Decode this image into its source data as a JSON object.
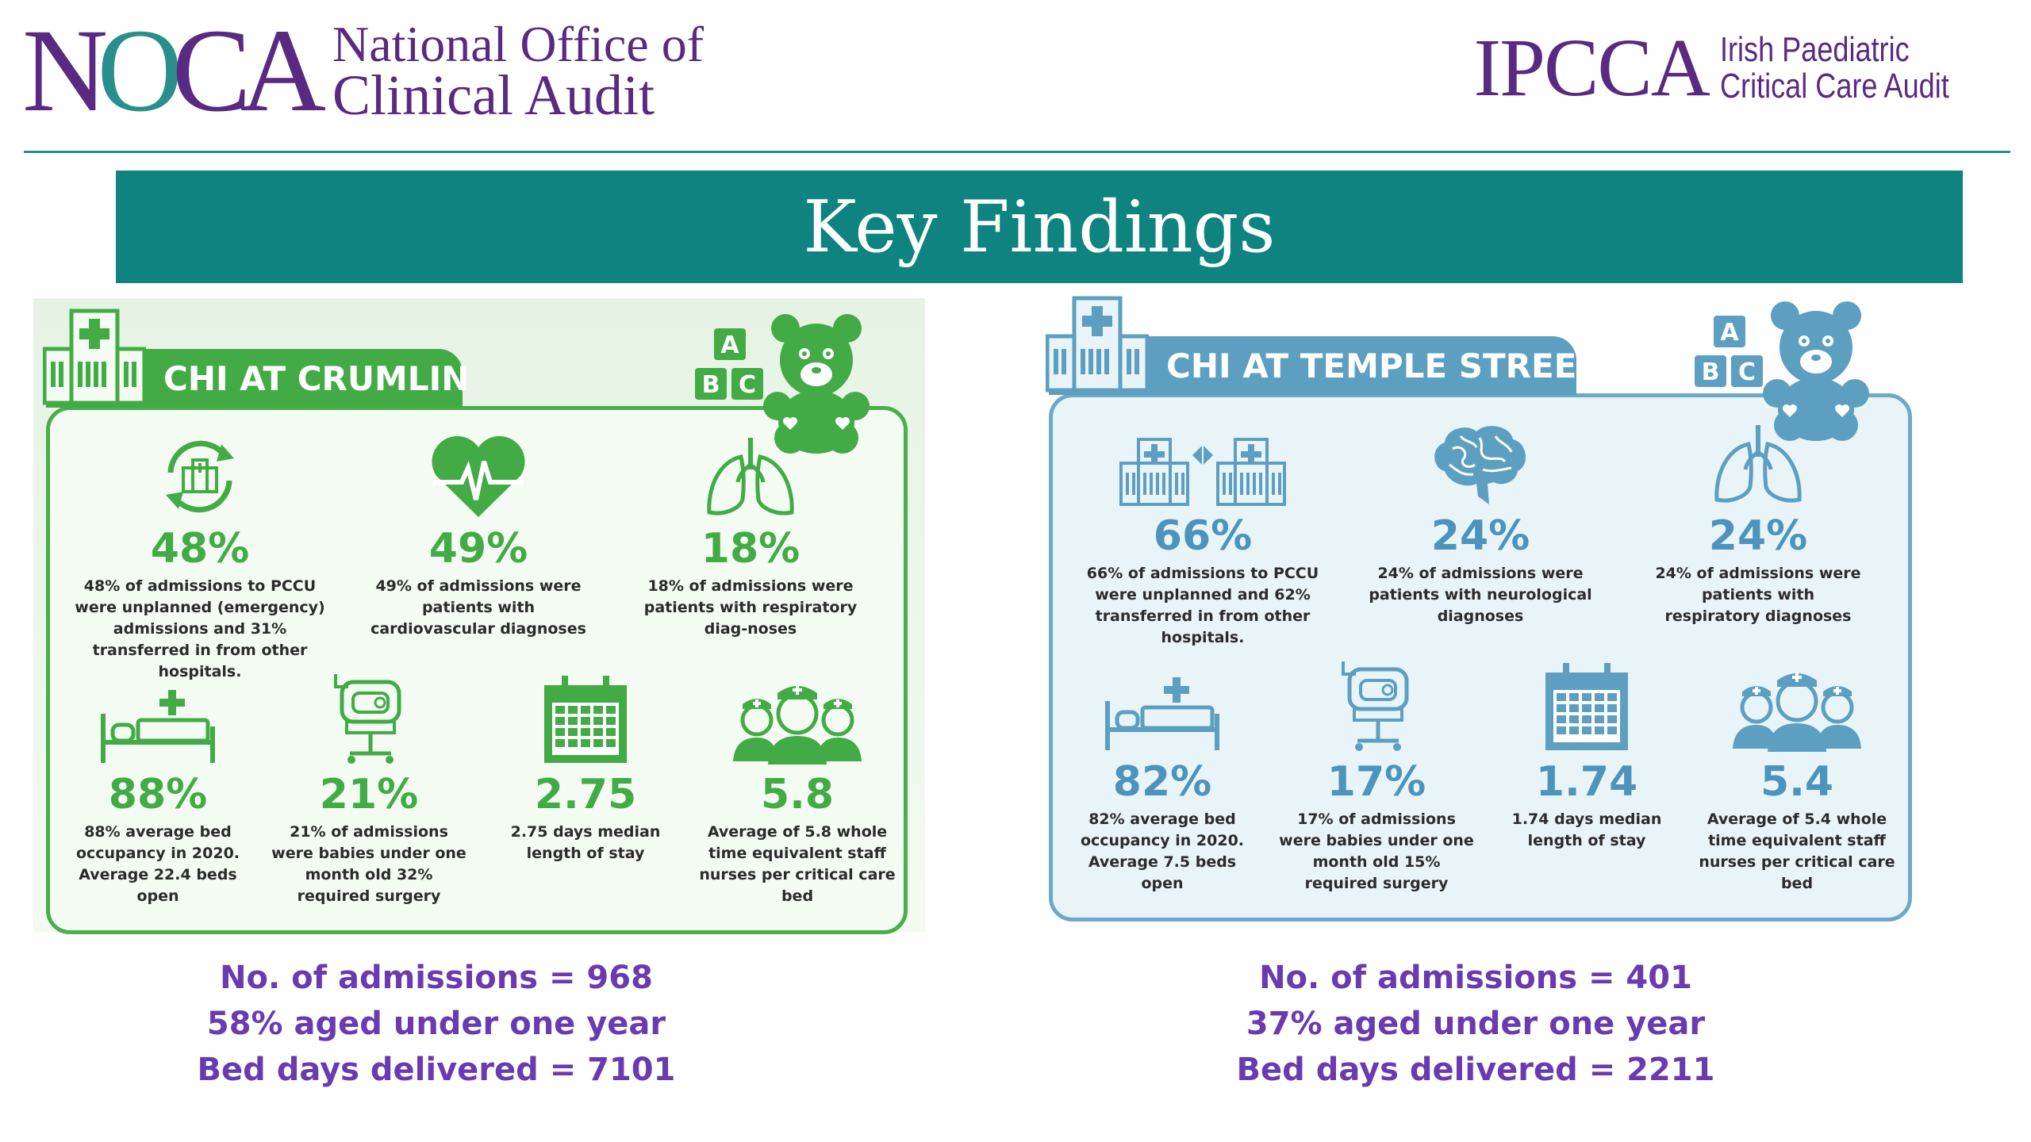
{
  "header": {
    "noca_logo_mark": "NOCA",
    "noca_line1": "National Office of",
    "noca_line2": "Clinical Audit",
    "ipcca_logo_mark": "IPCCA",
    "ipcca_line1": "Irish Paediatric",
    "ipcca_line2": "Critical Care Audit"
  },
  "banner": {
    "title": "Key Findings"
  },
  "colors": {
    "teal": "#0f8380",
    "green": "#43ab46",
    "blue": "#5d9fc0",
    "purple": "#6a3bb0"
  },
  "crumlin": {
    "tab_label": "CHI AT CRUMLIN",
    "stats": [
      {
        "icon": "hospital-transfer-icon",
        "value": "48%",
        "desc": "48% of admissions to PCCU were unplanned (emergency) admissions and 31% transferred in from other hospitals."
      },
      {
        "icon": "heart-icon",
        "value": "49%",
        "desc": "49% of admissions were patients with cardiovascular diagnoses"
      },
      {
        "icon": "lungs-icon",
        "value": "18%",
        "desc": "18% of admissions were patients with respiratory diag-noses"
      },
      {
        "icon": "bed-icon",
        "value": "88%",
        "desc": "88% average bed occupancy in 2020. Average 22.4 beds open"
      },
      {
        "icon": "incubator-icon",
        "value": "21%",
        "desc": "21% of admissions were babies under one month old 32% required surgery"
      },
      {
        "icon": "calendar-icon",
        "value": "2.75",
        "desc": "2.75 days median length of stay"
      },
      {
        "icon": "nurses-icon",
        "value": "5.8",
        "desc": "Average of 5.8 whole time equivalent staff nurses per critical care bed"
      }
    ],
    "summary": [
      "No. of admissions = 968",
      "58% aged under one year",
      "Bed days delivered = 7101"
    ]
  },
  "temple": {
    "tab_label": "CHI AT TEMPLE STREET",
    "stats": [
      {
        "icon": "hospital-transfer-icon",
        "value": "66%",
        "desc": "66% of admissions to PCCU were unplanned and 62% transferred in from other hospitals."
      },
      {
        "icon": "brain-icon",
        "value": "24%",
        "desc": "24% of admissions were patients with neurological diagnoses"
      },
      {
        "icon": "lungs-icon",
        "value": "24%",
        "desc": "24% of admissions were patients with respiratory diagnoses"
      },
      {
        "icon": "bed-icon",
        "value": "82%",
        "desc": "82% average bed occupancy in 2020. Average 7.5 beds open"
      },
      {
        "icon": "incubator-icon",
        "value": "17%",
        "desc": "17% of admissions were babies under one month old 15% required surgery"
      },
      {
        "icon": "calendar-icon",
        "value": "1.74",
        "desc": "1.74 days median length of stay"
      },
      {
        "icon": "nurses-icon",
        "value": "5.4",
        "desc": "Average of 5.4 whole time equivalent staff nurses per critical care bed"
      }
    ],
    "summary": [
      "No. of admissions = 401",
      "37% aged under one year",
      "Bed days delivered = 2211"
    ]
  }
}
